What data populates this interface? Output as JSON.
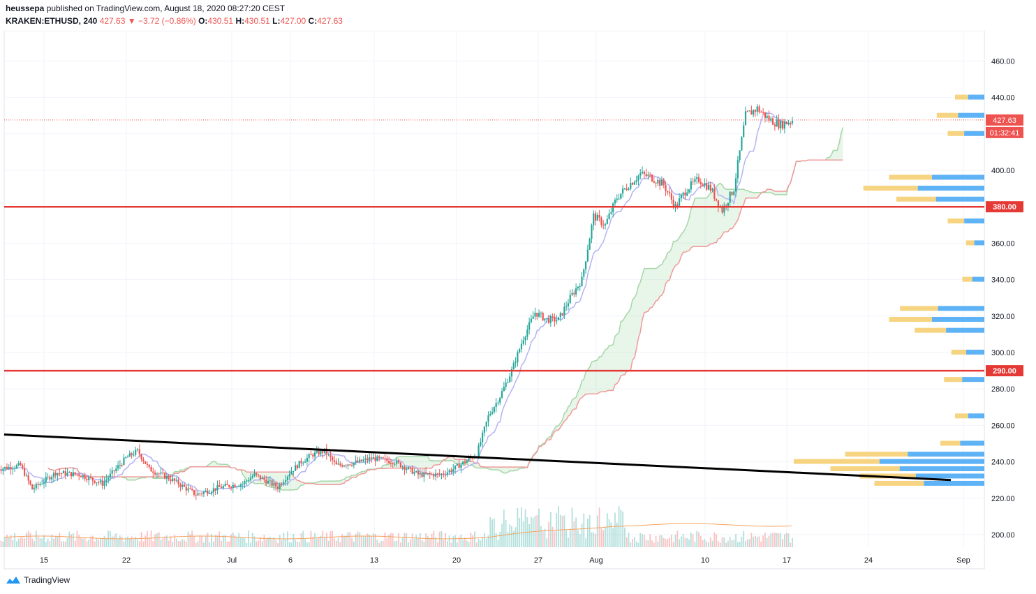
{
  "header": {
    "publisher": "heussepa",
    "published_text": "published on TradingView.com, August 18, 2020 08:27:20 CEST",
    "symbol": "KRAKEN:ETHUSD, 240",
    "last": "427.63",
    "change_arrow": "▼",
    "change": "−3.72 (−0.86%)",
    "o_label": "O:",
    "o_value": "430.51",
    "h_label": "H:",
    "h_value": "430.51",
    "l_label": "L:",
    "l_value": "427.00",
    "c_label": "C:",
    "c_value": "427.63"
  },
  "footer": {
    "brand": "TradingView",
    "logo_icon": "tradingview-logo-icon"
  },
  "colors": {
    "up": "#26a69a",
    "down": "#ef5350",
    "hline": "#e53935",
    "trend": "#000000",
    "cloud_green": "#a5d6a7",
    "cloud_red": "#ef9a9a",
    "conversion": "#b3b3f5",
    "vp_yellow": "#f5cd6b",
    "vp_blue": "#42a5f5",
    "volume_ma": "#f4a460"
  },
  "chart_data": {
    "type": "candlestick",
    "title": "",
    "xlabel": "",
    "ylabel": "",
    "ylim": [
      192,
      475
    ],
    "y_ticks": [
      200,
      220,
      240,
      260,
      280,
      300,
      320,
      340,
      360,
      380,
      400,
      420,
      440,
      460
    ],
    "x_ticks": [
      "15",
      "22",
      "Jul",
      "6",
      "13",
      "20",
      "27",
      "Aug",
      "10",
      "17",
      "24",
      "Sep"
    ],
    "horizontal_levels": [
      {
        "value": 380,
        "label": "380.00"
      },
      {
        "value": 290,
        "label": "290.00"
      }
    ],
    "last_price": {
      "value": 427.63,
      "label": "427.63",
      "countdown": "01:32:41"
    },
    "trendline": {
      "from": {
        "date": "2020-06-11",
        "value": 255
      },
      "to": {
        "date": "2020-08-30",
        "value": 230
      }
    },
    "price_path": [
      {
        "date": "2020-06-11",
        "value": 236
      },
      {
        "date": "2020-06-13",
        "value": 238
      },
      {
        "date": "2020-06-14",
        "value": 225
      },
      {
        "date": "2020-06-16",
        "value": 234
      },
      {
        "date": "2020-06-18",
        "value": 233
      },
      {
        "date": "2020-06-20",
        "value": 228
      },
      {
        "date": "2020-06-22",
        "value": 242
      },
      {
        "date": "2020-06-23",
        "value": 246
      },
      {
        "date": "2020-06-24",
        "value": 236
      },
      {
        "date": "2020-06-26",
        "value": 230
      },
      {
        "date": "2020-06-28",
        "value": 222
      },
      {
        "date": "2020-06-30",
        "value": 226
      },
      {
        "date": "2020-07-02",
        "value": 228
      },
      {
        "date": "2020-07-03",
        "value": 233
      },
      {
        "date": "2020-07-05",
        "value": 226
      },
      {
        "date": "2020-07-06",
        "value": 234
      },
      {
        "date": "2020-07-07",
        "value": 240
      },
      {
        "date": "2020-07-08",
        "value": 244
      },
      {
        "date": "2020-07-09",
        "value": 246
      },
      {
        "date": "2020-07-10",
        "value": 238
      },
      {
        "date": "2020-07-12",
        "value": 240
      },
      {
        "date": "2020-07-13",
        "value": 242
      },
      {
        "date": "2020-07-15",
        "value": 240
      },
      {
        "date": "2020-07-17",
        "value": 233
      },
      {
        "date": "2020-07-19",
        "value": 233
      },
      {
        "date": "2020-07-20",
        "value": 236
      },
      {
        "date": "2020-07-21",
        "value": 240
      },
      {
        "date": "2020-07-22",
        "value": 244
      },
      {
        "date": "2020-07-23",
        "value": 265
      },
      {
        "date": "2020-07-24",
        "value": 276
      },
      {
        "date": "2020-07-25",
        "value": 290
      },
      {
        "date": "2020-07-26",
        "value": 308
      },
      {
        "date": "2020-07-27",
        "value": 322
      },
      {
        "date": "2020-07-28",
        "value": 318
      },
      {
        "date": "2020-07-29",
        "value": 318
      },
      {
        "date": "2020-07-30",
        "value": 330
      },
      {
        "date": "2020-07-31",
        "value": 340
      },
      {
        "date": "2020-08-01",
        "value": 375
      },
      {
        "date": "2020-08-02",
        "value": 370
      },
      {
        "date": "2020-08-03",
        "value": 385
      },
      {
        "date": "2020-08-04",
        "value": 392
      },
      {
        "date": "2020-08-05",
        "value": 398
      },
      {
        "date": "2020-08-06",
        "value": 396
      },
      {
        "date": "2020-08-07",
        "value": 392
      },
      {
        "date": "2020-08-08",
        "value": 380
      },
      {
        "date": "2020-08-09",
        "value": 390
      },
      {
        "date": "2020-08-10",
        "value": 395
      },
      {
        "date": "2020-08-11",
        "value": 390
      },
      {
        "date": "2020-08-12",
        "value": 378
      },
      {
        "date": "2020-08-13",
        "value": 390
      },
      {
        "date": "2020-08-14",
        "value": 430
      },
      {
        "date": "2020-08-15",
        "value": 434
      },
      {
        "date": "2020-08-16",
        "value": 428
      },
      {
        "date": "2020-08-17",
        "value": 425
      },
      {
        "date": "2020-08-18",
        "value": 427.63
      }
    ],
    "volume_profile": [
      {
        "price": 228,
        "value": 150
      },
      {
        "price": 232,
        "value": 170
      },
      {
        "price": 236,
        "value": 210
      },
      {
        "price": 240,
        "value": 260
      },
      {
        "price": 244,
        "value": 190
      },
      {
        "price": 250,
        "value": 60
      },
      {
        "price": 265,
        "value": 40
      },
      {
        "price": 285,
        "value": 55
      },
      {
        "price": 300,
        "value": 45
      },
      {
        "price": 312,
        "value": 95
      },
      {
        "price": 318,
        "value": 130
      },
      {
        "price": 324,
        "value": 115
      },
      {
        "price": 340,
        "value": 30
      },
      {
        "price": 360,
        "value": 25
      },
      {
        "price": 372,
        "value": 50
      },
      {
        "price": 384,
        "value": 120
      },
      {
        "price": 390,
        "value": 165
      },
      {
        "price": 396,
        "value": 130
      },
      {
        "price": 420,
        "value": 50
      },
      {
        "price": 430,
        "value": 65
      },
      {
        "price": 440,
        "value": 40
      }
    ]
  }
}
